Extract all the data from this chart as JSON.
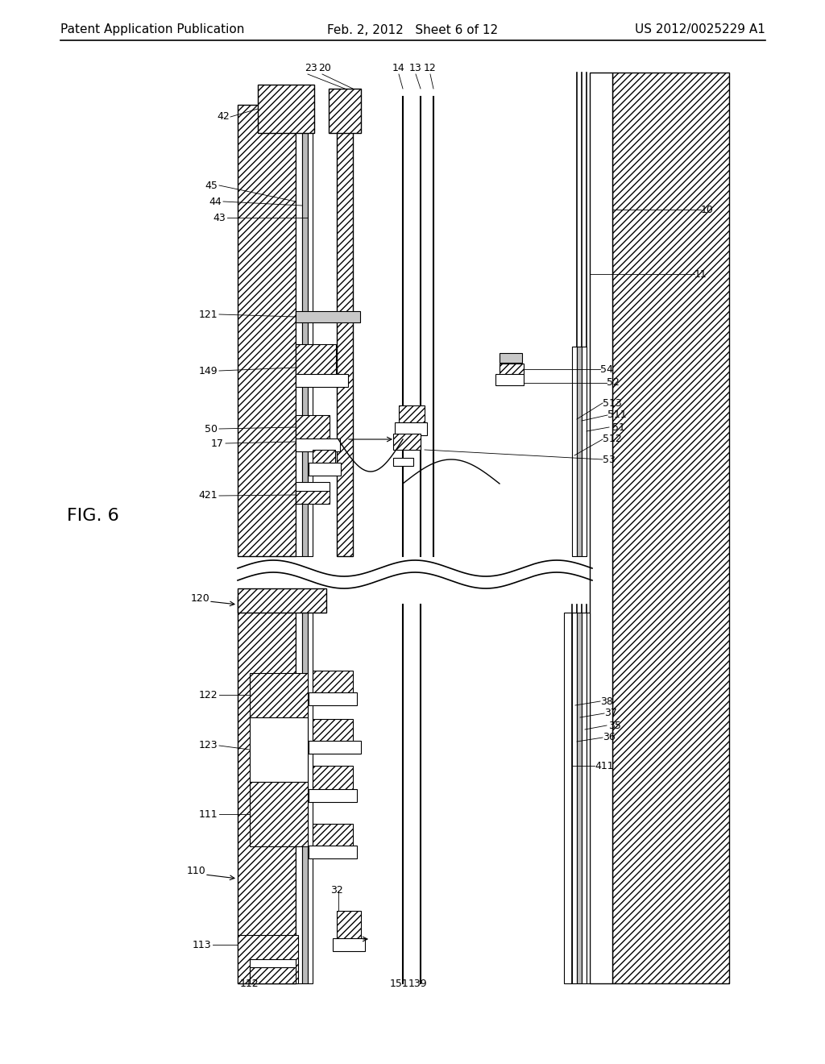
{
  "header_left": "Patent Application Publication",
  "header_center": "Feb. 2, 2012   Sheet 6 of 12",
  "header_right": "US 2012/0025229 A1",
  "background": "#ffffff",
  "fig_label": "FIG. 6"
}
